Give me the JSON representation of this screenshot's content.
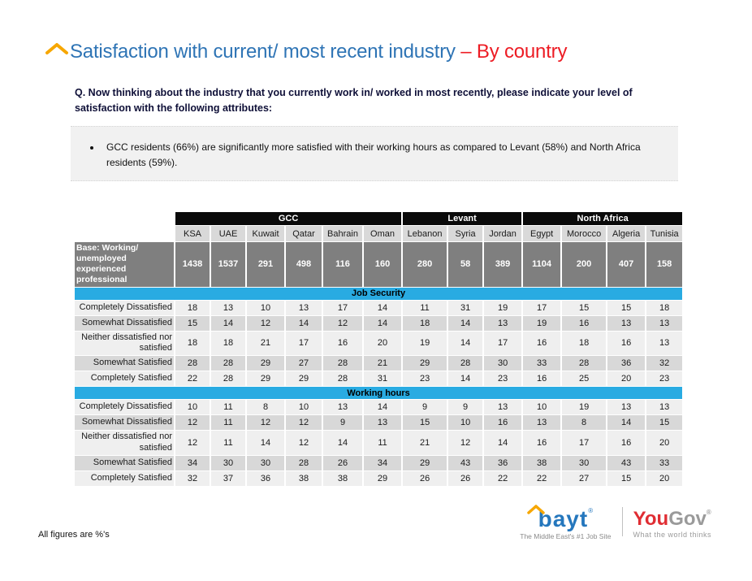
{
  "slide": {
    "title_main": "Satisfaction with current/ most recent industry ",
    "title_suffix": "– By country",
    "question": "Q. Now thinking about the industry that you currently work in/ worked in most recently, please indicate your level of satisfaction with the following attributes:",
    "insight": "GCC residents (66%) are significantly more satisfied with their working hours as compared to Levant (58%) and North Africa residents (59%).",
    "footnote": "All figures are %'s"
  },
  "logos": {
    "bayt": {
      "text": "bayt",
      "reg": "®",
      "tagline": "The Middle East's #1 Job Site"
    },
    "yougov": {
      "you": "You",
      "gov": "Gov",
      "reg": "®",
      "tagline": "What the world thinks"
    }
  },
  "colors": {
    "title_blue": "#2E74B5",
    "title_red": "#ED1C24",
    "chevron_orange": "#F7A700",
    "region_header_bg": "#0A0A0A",
    "country_header_bg": "#D9D9D9",
    "base_row_bg": "#7F7F7F",
    "section_bg": "#29ABE2",
    "row_light": "#EFEFEF",
    "row_dark": "#D8D8D8",
    "callout_bg": "#F1F1F1"
  },
  "chart_data": {
    "type": "table",
    "regions": [
      {
        "label": "GCC",
        "span": 6
      },
      {
        "label": "Levant",
        "span": 3
      },
      {
        "label": "North Africa",
        "span": 4
      }
    ],
    "countries": [
      "KSA",
      "UAE",
      "Kuwait",
      "Qatar",
      "Bahrain",
      "Oman",
      "Lebanon",
      "Syria",
      "Jordan",
      "Egypt",
      "Morocco",
      "Algeria",
      "Tunisia"
    ],
    "base": {
      "label": "Base: Working/ unemployed experienced professional",
      "values": [
        1438,
        1537,
        291,
        498,
        116,
        160,
        280,
        58,
        389,
        1104,
        200,
        407,
        158
      ]
    },
    "sections": [
      {
        "title": "Job Security",
        "rows": [
          {
            "label": "Completely Dissatisfied",
            "values": [
              18,
              13,
              10,
              13,
              17,
              14,
              11,
              31,
              19,
              17,
              15,
              15,
              18
            ]
          },
          {
            "label": "Somewhat Dissatisfied",
            "values": [
              15,
              14,
              12,
              14,
              12,
              14,
              18,
              14,
              13,
              19,
              16,
              13,
              13
            ]
          },
          {
            "label": "Neither dissatisfied nor satisfied",
            "values": [
              18,
              18,
              21,
              17,
              16,
              20,
              19,
              14,
              17,
              16,
              18,
              16,
              13
            ]
          },
          {
            "label": "Somewhat Satisfied",
            "values": [
              28,
              28,
              29,
              27,
              28,
              21,
              29,
              28,
              30,
              33,
              28,
              36,
              32
            ]
          },
          {
            "label": "Completely Satisfied",
            "values": [
              22,
              28,
              29,
              29,
              28,
              31,
              23,
              14,
              23,
              16,
              25,
              20,
              23
            ]
          }
        ]
      },
      {
        "title": "Working hours",
        "rows": [
          {
            "label": "Completely Dissatisfied",
            "values": [
              10,
              11,
              8,
              10,
              13,
              14,
              9,
              9,
              13,
              10,
              19,
              13,
              13
            ]
          },
          {
            "label": "Somewhat Dissatisfied",
            "values": [
              12,
              11,
              12,
              12,
              9,
              13,
              15,
              10,
              16,
              13,
              8,
              14,
              15
            ]
          },
          {
            "label": "Neither dissatisfied nor satisfied",
            "values": [
              12,
              11,
              14,
              12,
              14,
              11,
              21,
              12,
              14,
              16,
              17,
              16,
              20
            ]
          },
          {
            "label": "Somewhat Satisfied",
            "values": [
              34,
              30,
              30,
              28,
              26,
              34,
              29,
              43,
              36,
              38,
              30,
              43,
              33
            ]
          },
          {
            "label": "Completely Satisfied",
            "values": [
              32,
              37,
              36,
              38,
              38,
              29,
              26,
              26,
              22,
              22,
              27,
              15,
              20
            ]
          }
        ]
      }
    ]
  }
}
